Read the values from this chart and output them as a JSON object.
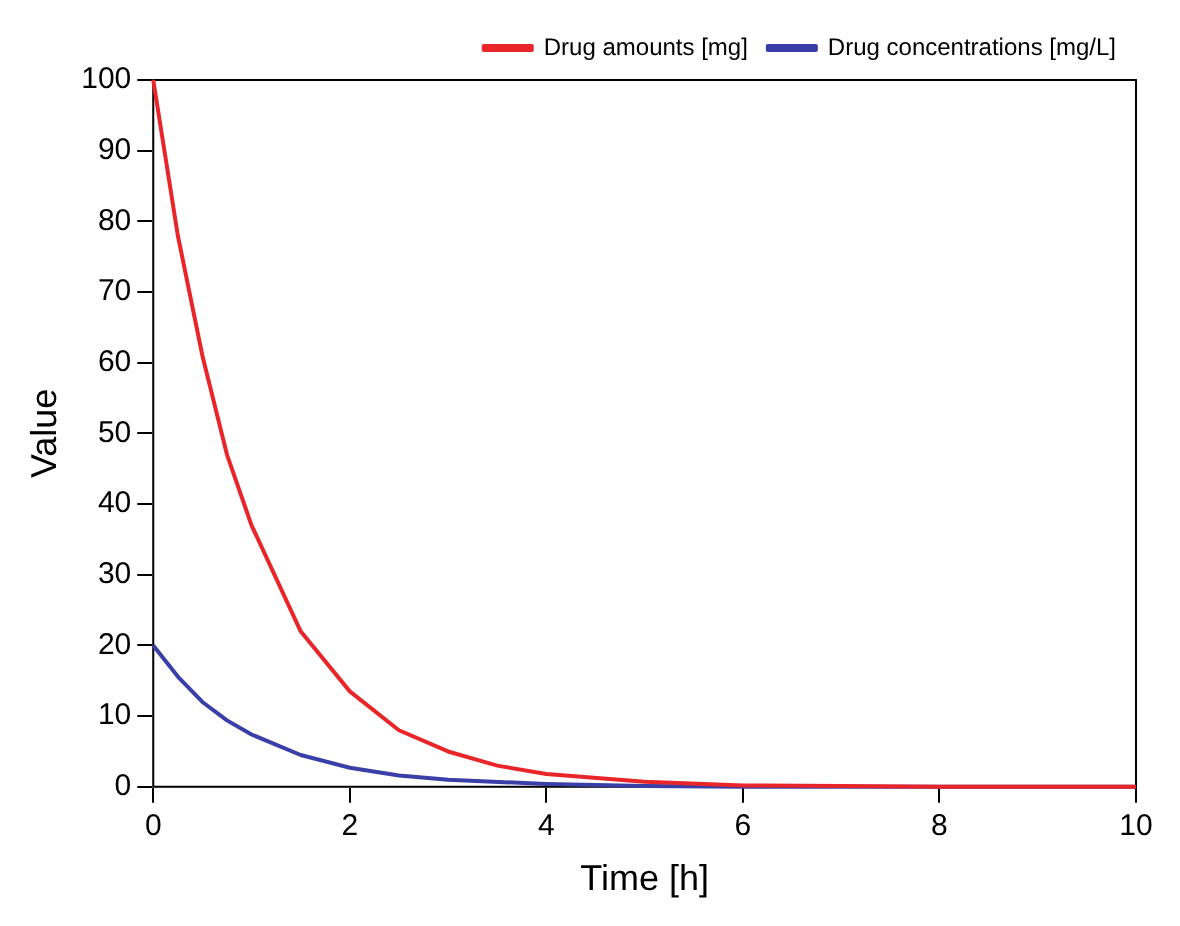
{
  "chart_data": {
    "type": "line",
    "xlabel": "Time [h]",
    "ylabel": "Value",
    "xlim": [
      0,
      10
    ],
    "ylim": [
      0,
      100
    ],
    "xticks": [
      0,
      2,
      4,
      6,
      8,
      10
    ],
    "yticks": [
      0,
      10,
      20,
      30,
      40,
      50,
      60,
      70,
      80,
      90,
      100
    ],
    "grid": false,
    "legend": "top right",
    "marker": "none",
    "line_style": "solid",
    "series": [
      {
        "name": "Drug amounts [mg]",
        "color": "#e8262a",
        "x": [
          0,
          0.25,
          0.5,
          0.75,
          1,
          1.5,
          2,
          2.5,
          3,
          3.5,
          4,
          5,
          6,
          7,
          8,
          10
        ],
        "values": [
          100,
          78,
          61,
          47,
          37,
          22,
          13.5,
          8,
          5,
          3,
          1.8,
          0.7,
          0.2,
          0.1,
          0,
          0
        ]
      },
      {
        "name": "Drug concentrations [mg/L]",
        "color": "#3a3fa8",
        "x": [
          0,
          0.25,
          0.5,
          0.75,
          1,
          1.5,
          2,
          2.5,
          3,
          4,
          5,
          6,
          8,
          10
        ],
        "values": [
          20,
          15.6,
          12,
          9.4,
          7.4,
          4.5,
          2.7,
          1.6,
          1,
          0.4,
          0.1,
          0,
          0,
          0
        ]
      }
    ]
  }
}
